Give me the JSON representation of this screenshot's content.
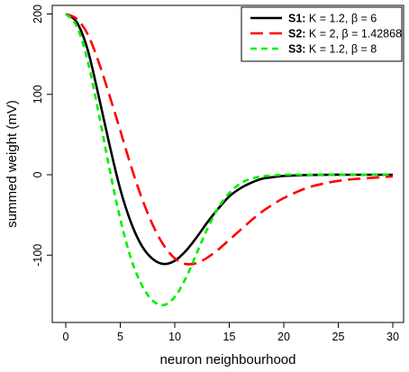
{
  "chart_data": {
    "type": "line",
    "title": "",
    "xlabel": "neuron neighbourhood",
    "ylabel": "summed weight (mV)",
    "xlim": [
      0,
      30
    ],
    "ylim": [
      -160,
      200
    ],
    "xticks": [
      0,
      5,
      10,
      15,
      20,
      25,
      30
    ],
    "yticks": [
      200,
      100,
      0,
      -100
    ],
    "grid": false,
    "legend_position": "top-right",
    "x": [
      0,
      1,
      2,
      3,
      4,
      5,
      6,
      7,
      8,
      9,
      10,
      11,
      12,
      13,
      14,
      15,
      16,
      17,
      18,
      19,
      20,
      22,
      24,
      26,
      28,
      30
    ],
    "series": [
      {
        "name": "S1",
        "params": "K = 1.2, β = 6",
        "color": "#000000",
        "dash": "solid",
        "values": [
          200,
          190,
          156,
          99,
          38,
          -18,
          -60,
          -89,
          -105,
          -111,
          -107,
          -95,
          -78,
          -59,
          -42,
          -27,
          -17,
          -10,
          -5,
          -3,
          -1.5,
          -0.3,
          0,
          0,
          0,
          0
        ]
      },
      {
        "name": "S2",
        "params": "K = 2, β = 1.42868",
        "color": "#ff0000",
        "dash": "longdash",
        "values": [
          200,
          194,
          175,
          141,
          99,
          55,
          10,
          -30,
          -63,
          -88,
          -104,
          -111,
          -110,
          -103,
          -93,
          -81,
          -69,
          -57,
          -46,
          -37,
          -29,
          -17,
          -10,
          -6,
          -4,
          -2
        ]
      },
      {
        "name": "S3",
        "params": "K = 1.2, β = 8",
        "color": "#00ee00",
        "dash": "dashed",
        "values": [
          200,
          185,
          142,
          78,
          8,
          -55,
          -105,
          -138,
          -157,
          -162,
          -152,
          -129,
          -98,
          -67,
          -41,
          -23,
          -11,
          -5,
          -2,
          -1,
          0,
          0,
          0,
          0,
          0,
          0
        ]
      }
    ]
  }
}
